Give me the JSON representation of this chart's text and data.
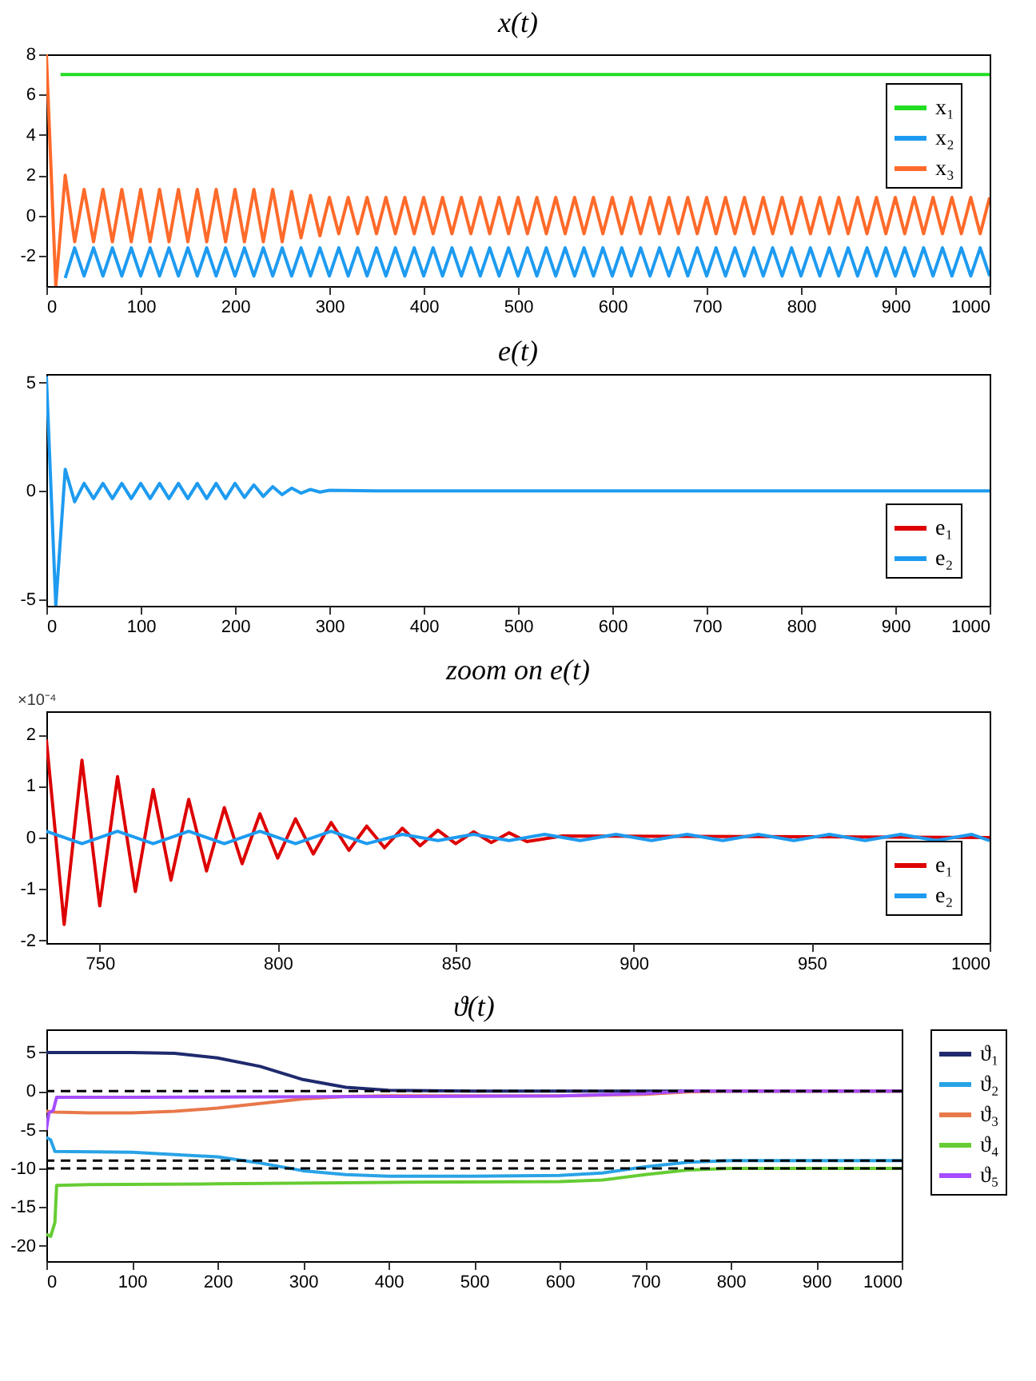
{
  "chart_data": [
    {
      "type": "line",
      "title": "x(t)",
      "xlim": [
        0,
        1000
      ],
      "xticks": [
        0,
        100,
        200,
        300,
        400,
        500,
        600,
        700,
        800,
        900,
        1000
      ],
      "ylim": [
        -3.5,
        8
      ],
      "yticks": [
        -2,
        0,
        2,
        4,
        6,
        8
      ],
      "legend": "top right",
      "x": [
        0,
        10,
        20,
        30,
        40,
        50,
        60,
        70,
        80,
        90,
        100,
        110,
        120,
        130,
        140,
        150,
        160,
        170,
        180,
        190,
        200,
        210,
        220,
        230,
        240,
        250,
        260,
        270,
        280,
        290,
        300,
        310,
        320,
        330,
        340,
        350,
        360,
        370,
        380,
        390,
        400,
        410,
        420,
        430,
        440,
        450,
        460,
        470,
        480,
        490,
        500,
        510,
        520,
        530,
        540,
        550,
        560,
        570,
        580,
        590,
        600,
        610,
        620,
        630,
        640,
        650,
        660,
        670,
        680,
        690,
        700,
        710,
        720,
        730,
        740,
        750,
        760,
        770,
        780,
        790,
        800,
        810,
        820,
        830,
        840,
        850,
        860,
        870,
        880,
        890,
        900,
        910,
        920,
        930,
        940,
        950,
        960,
        970,
        980,
        990,
        1000
      ],
      "series": [
        {
          "name": "x₁",
          "color": "#22dd22",
          "x": [
            15,
            1000
          ],
          "values": [
            7,
            7
          ]
        },
        {
          "name": "x₂",
          "color": "#1e9bf0",
          "values": [
            null,
            null,
            -3.1,
            -1.6,
            -3.0,
            -1.6,
            -3.0,
            -1.6,
            -3.0,
            -1.6,
            -3.0,
            -1.6,
            -3.0,
            -1.6,
            -3.0,
            -1.6,
            -3.0,
            -1.6,
            -3.0,
            -1.6,
            -3.0,
            -1.6,
            -3.0,
            -1.6,
            -3.0,
            -1.6,
            -3.0,
            -1.6,
            -3.0,
            -1.6,
            -3.0,
            -1.6,
            -3.0,
            -1.6,
            -3.0,
            -1.6,
            -3.0,
            -1.6,
            -3.0,
            -1.6,
            -3.0,
            -1.6,
            -3.0,
            -1.6,
            -3.0,
            -1.6,
            -3.0,
            -1.6,
            -3.0,
            -1.6,
            -3.0,
            -1.6,
            -3.0,
            -1.6,
            -3.0,
            -1.6,
            -3.0,
            -1.6,
            -3.0,
            -1.6,
            -3.0,
            -1.6,
            -3.0,
            -1.6,
            -3.0,
            -1.6,
            -3.0,
            -1.6,
            -3.0,
            -1.6,
            -3.0,
            -1.6,
            -3.0,
            -1.6,
            -3.0,
            -1.6,
            -3.0,
            -1.6,
            -3.0,
            -1.6,
            -3.0,
            -1.6,
            -3.0,
            -1.6,
            -3.0,
            -1.6,
            -3.0,
            -1.6,
            -3.0,
            -1.6,
            -3.0,
            -1.6,
            -3.0,
            -1.6,
            -3.0,
            -1.6,
            -3.0,
            -1.6,
            -3.0,
            -1.6,
            -3.0
          ]
        },
        {
          "name": "x₃",
          "color": "#ff6a2a",
          "values": [
            8,
            -3.5,
            2,
            -1.3,
            1.3,
            -1.3,
            1.3,
            -1.3,
            1.3,
            -1.3,
            1.3,
            -1.3,
            1.3,
            -1.3,
            1.3,
            -1.3,
            1.3,
            -1.3,
            1.3,
            -1.3,
            1.3,
            -1.3,
            1.3,
            -1.3,
            1.3,
            -1.3,
            1.2,
            -1.1,
            1.0,
            -1.0,
            0.9,
            -0.9,
            0.9,
            -0.9,
            0.9,
            -0.9,
            0.9,
            -0.9,
            0.9,
            -0.9,
            0.9,
            -0.9,
            0.9,
            -0.9,
            0.9,
            -0.9,
            0.9,
            -0.9,
            0.9,
            -0.9,
            0.9,
            -0.9,
            0.9,
            -0.9,
            0.9,
            -0.9,
            0.9,
            -0.9,
            0.9,
            -0.9,
            0.9,
            -0.9,
            0.9,
            -0.9,
            0.9,
            -0.9,
            0.9,
            -0.9,
            0.9,
            -0.9,
            0.9,
            -0.9,
            0.9,
            -0.9,
            0.9,
            -0.9,
            0.9,
            -0.9,
            0.9,
            -0.9,
            0.9,
            -0.9,
            0.9,
            -0.9,
            0.9,
            -0.9,
            0.9,
            -0.9,
            0.9,
            -0.9,
            0.9,
            -0.9,
            0.9,
            -0.9,
            0.9,
            -0.9,
            0.9,
            -0.9,
            0.9,
            -0.9,
            0.9
          ]
        }
      ]
    },
    {
      "type": "line",
      "title": "e(t)",
      "xlim": [
        0,
        1000
      ],
      "xticks": [
        0,
        100,
        200,
        300,
        400,
        500,
        600,
        700,
        800,
        900,
        1000
      ],
      "ylim": [
        -5.3,
        5.4
      ],
      "yticks": [
        -5,
        0,
        5
      ],
      "legend": "bottom right",
      "series": [
        {
          "name": "e₁",
          "color": "#dd0000"
        },
        {
          "name": "e₂",
          "color": "#1e9bf0",
          "x": [
            0,
            10,
            20,
            30,
            40,
            50,
            60,
            70,
            80,
            90,
            100,
            110,
            120,
            130,
            140,
            150,
            160,
            170,
            180,
            190,
            200,
            210,
            220,
            230,
            240,
            250,
            260,
            270,
            280,
            290,
            300,
            350,
            1000
          ],
          "values": [
            5.3,
            -5.3,
            1.0,
            -0.5,
            0.35,
            -0.35,
            0.35,
            -0.35,
            0.35,
            -0.35,
            0.35,
            -0.35,
            0.35,
            -0.35,
            0.35,
            -0.35,
            0.35,
            -0.35,
            0.35,
            -0.35,
            0.35,
            -0.3,
            0.28,
            -0.25,
            0.2,
            -0.17,
            0.13,
            -0.1,
            0.07,
            -0.05,
            0.03,
            0,
            0
          ]
        }
      ]
    },
    {
      "type": "line",
      "title": "zoom on e(t)",
      "annotations": [
        "×10⁻⁴"
      ],
      "xlim": [
        735,
        1000
      ],
      "xticks": [
        750,
        800,
        850,
        900,
        950,
        1000
      ],
      "ylim": [
        -2.05,
        2.45
      ],
      "yticks": [
        -2,
        -1,
        0,
        1,
        2
      ],
      "legend": "bottom right",
      "series": [
        {
          "name": "e₁",
          "color": "#dd0000",
          "x": [
            735,
            740,
            745,
            750,
            755,
            760,
            765,
            770,
            775,
            780,
            785,
            790,
            795,
            800,
            805,
            810,
            815,
            820,
            825,
            830,
            835,
            840,
            845,
            850,
            855,
            860,
            865,
            870,
            880,
            1000
          ],
          "values": [
            1.9,
            -1.69,
            1.5,
            -1.33,
            1.18,
            -1.05,
            0.93,
            -0.83,
            0.74,
            -0.65,
            0.58,
            -0.51,
            0.46,
            -0.4,
            0.36,
            -0.32,
            0.29,
            -0.25,
            0.22,
            -0.2,
            0.18,
            -0.16,
            0.14,
            -0.12,
            0.11,
            -0.1,
            0.09,
            -0.08,
            0.03,
            0
          ]
        },
        {
          "name": "e₂",
          "color": "#1e9bf0",
          "x": [
            735,
            745,
            755,
            765,
            775,
            785,
            795,
            805,
            815,
            825,
            835,
            845,
            855,
            865,
            875,
            885,
            895,
            905,
            915,
            925,
            935,
            945,
            955,
            965,
            975,
            985,
            995,
            1000
          ],
          "values": [
            0.12,
            -0.12,
            0.12,
            -0.12,
            0.12,
            -0.12,
            0.12,
            -0.12,
            0.12,
            -0.12,
            0.06,
            -0.06,
            0.06,
            -0.06,
            0.06,
            -0.06,
            0.06,
            -0.06,
            0.06,
            -0.06,
            0.06,
            -0.06,
            0.06,
            -0.06,
            0.06,
            -0.06,
            0.06,
            -0.06
          ]
        }
      ]
    },
    {
      "type": "line",
      "title": "ϑ(t)",
      "xlim": [
        0,
        1000
      ],
      "xticks": [
        0,
        100,
        200,
        300,
        400,
        500,
        600,
        700,
        800,
        900,
        1000
      ],
      "ylim": [
        -22,
        8
      ],
      "yticks": [
        -20,
        -15,
        -10,
        -5,
        0,
        5
      ],
      "legend": "right",
      "ref_lines": [
        {
          "axis": "y",
          "value": 0,
          "color": "#000000",
          "line_style": "dashed"
        },
        {
          "axis": "y",
          "value": -9,
          "color": "#000000",
          "line_style": "dashed"
        },
        {
          "axis": "y",
          "value": -10,
          "color": "#000000",
          "line_style": "dashed"
        }
      ],
      "series": [
        {
          "name": "ϑ₁",
          "color": "#1f2a6e",
          "x": [
            0,
            100,
            150,
            200,
            250,
            300,
            350,
            400,
            500,
            1000
          ],
          "values": [
            5,
            5,
            4.9,
            4.3,
            3.2,
            1.5,
            0.5,
            0.1,
            0,
            0
          ]
        },
        {
          "name": "ϑ₂",
          "color": "#29a3e6",
          "x": [
            0,
            5,
            10,
            100,
            200,
            250,
            300,
            350,
            400,
            500,
            600,
            650,
            700,
            750,
            800,
            1000
          ],
          "values": [
            -6,
            -6.3,
            -7.8,
            -7.9,
            -8.5,
            -9.3,
            -10.3,
            -10.8,
            -11,
            -11,
            -10.9,
            -10.6,
            -9.8,
            -9.2,
            -9,
            -9
          ]
        },
        {
          "name": "ϑ₃",
          "color": "#e8784a",
          "x": [
            0,
            10,
            50,
            100,
            150,
            200,
            250,
            300,
            350,
            400,
            600,
            700,
            750,
            800,
            1000
          ],
          "values": [
            -2.6,
            -2.7,
            -2.8,
            -2.8,
            -2.6,
            -2.2,
            -1.6,
            -1.0,
            -0.7,
            -0.6,
            -0.6,
            -0.4,
            -0.1,
            0,
            0
          ]
        },
        {
          "name": "ϑ₄",
          "color": "#66cc33",
          "x": [
            0,
            5,
            10,
            12,
            50,
            200,
            400,
            600,
            650,
            700,
            750,
            800,
            1000
          ],
          "values": [
            -18.5,
            -18.8,
            -17,
            -12.2,
            -12.1,
            -12,
            -11.8,
            -11.7,
            -11.5,
            -10.8,
            -10.2,
            -10,
            -10
          ]
        },
        {
          "name": "ϑ₅",
          "color": "#a64dff",
          "x": [
            0,
            3,
            8,
            12,
            100,
            400,
            600,
            700,
            750,
            1000
          ],
          "values": [
            -5,
            -2.8,
            -2.5,
            -0.8,
            -0.8,
            -0.7,
            -0.6,
            -0.3,
            0,
            0
          ]
        }
      ]
    }
  ]
}
